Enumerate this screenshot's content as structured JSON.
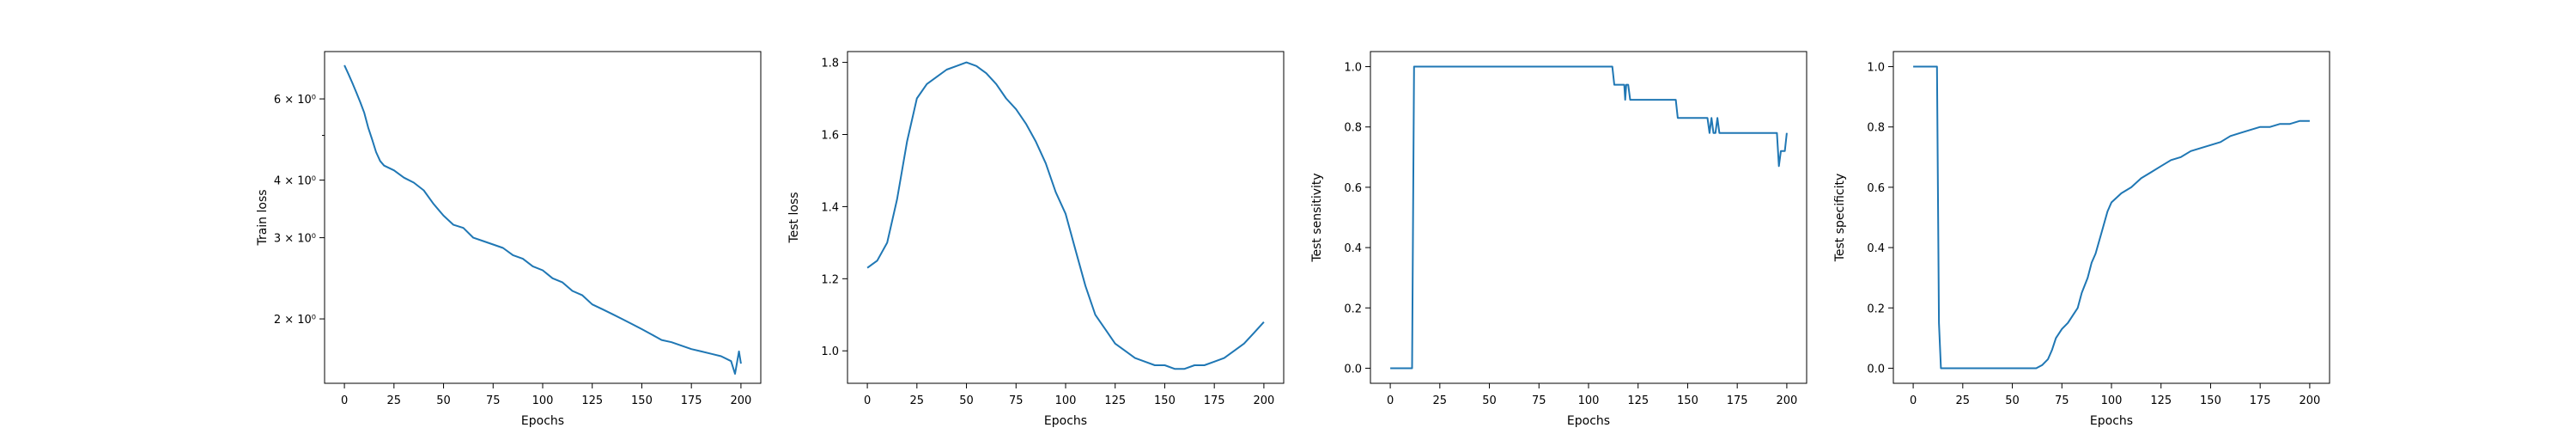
{
  "chart_data": [
    {
      "type": "line",
      "title": "",
      "xlabel": "Epochs",
      "ylabel": "Train loss",
      "yscale": "log",
      "xlim": [
        -10,
        210
      ],
      "ylim": [
        1.45,
        7.6
      ],
      "xticks": [
        0,
        25,
        50,
        75,
        100,
        125,
        150,
        175,
        200
      ],
      "yticks": [
        2,
        3,
        4,
        6
      ],
      "ytick_labels": [
        "2 × 10⁰",
        "3 × 10⁰",
        "4 × 10⁰",
        "6 × 10⁰"
      ],
      "grid": false,
      "series": [
        {
          "x": [
            0,
            2,
            4,
            6,
            8,
            10,
            12,
            14,
            16,
            18,
            20,
            25,
            30,
            35,
            40,
            45,
            50,
            55,
            60,
            65,
            70,
            75,
            80,
            85,
            90,
            95,
            100,
            105,
            110,
            115,
            120,
            125,
            130,
            135,
            140,
            145,
            150,
            155,
            160,
            165,
            170,
            175,
            180,
            185,
            190,
            195,
            197,
            199,
            200
          ],
          "y": [
            7.1,
            6.8,
            6.5,
            6.2,
            5.9,
            5.6,
            5.2,
            4.9,
            4.6,
            4.4,
            4.3,
            4.2,
            4.05,
            3.95,
            3.8,
            3.55,
            3.35,
            3.2,
            3.15,
            3.0,
            2.95,
            2.9,
            2.85,
            2.75,
            2.7,
            2.6,
            2.55,
            2.45,
            2.4,
            2.3,
            2.25,
            2.15,
            2.1,
            2.05,
            2.0,
            1.95,
            1.9,
            1.85,
            1.8,
            1.78,
            1.75,
            1.72,
            1.7,
            1.68,
            1.66,
            1.62,
            1.52,
            1.7,
            1.6
          ]
        }
      ]
    },
    {
      "type": "line",
      "title": "",
      "xlabel": "Epochs",
      "ylabel": "Test loss",
      "yscale": "linear",
      "xlim": [
        -10,
        210
      ],
      "ylim": [
        0.91,
        1.83
      ],
      "xticks": [
        0,
        25,
        50,
        75,
        100,
        125,
        150,
        175,
        200
      ],
      "yticks": [
        1.0,
        1.2,
        1.4,
        1.6,
        1.8
      ],
      "ytick_labels": [
        "1.0",
        "1.2",
        "1.4",
        "1.6",
        "1.8"
      ],
      "grid": false,
      "series": [
        {
          "x": [
            0,
            5,
            10,
            15,
            20,
            25,
            30,
            35,
            40,
            45,
            50,
            55,
            60,
            65,
            70,
            75,
            80,
            85,
            90,
            95,
            100,
            105,
            110,
            115,
            120,
            125,
            130,
            135,
            140,
            145,
            150,
            155,
            160,
            165,
            170,
            175,
            180,
            185,
            190,
            195,
            200
          ],
          "y": [
            1.23,
            1.25,
            1.3,
            1.42,
            1.58,
            1.7,
            1.74,
            1.76,
            1.78,
            1.79,
            1.8,
            1.79,
            1.77,
            1.74,
            1.7,
            1.67,
            1.63,
            1.58,
            1.52,
            1.44,
            1.38,
            1.28,
            1.18,
            1.1,
            1.06,
            1.02,
            1.0,
            0.98,
            0.97,
            0.96,
            0.96,
            0.95,
            0.95,
            0.96,
            0.96,
            0.97,
            0.98,
            1.0,
            1.02,
            1.05,
            1.08
          ]
        }
      ]
    },
    {
      "type": "line",
      "title": "",
      "xlabel": "Epochs",
      "ylabel": "Test sensitivity",
      "yscale": "linear",
      "xlim": [
        -10,
        210
      ],
      "ylim": [
        -0.05,
        1.05
      ],
      "xticks": [
        0,
        25,
        50,
        75,
        100,
        125,
        150,
        175,
        200
      ],
      "yticks": [
        0.0,
        0.2,
        0.4,
        0.6,
        0.8,
        1.0
      ],
      "ytick_labels": [
        "0.0",
        "0.2",
        "0.4",
        "0.6",
        "0.8",
        "1.0"
      ],
      "grid": false,
      "series": [
        {
          "x": [
            0,
            11,
            12,
            112,
            113,
            118,
            118.5,
            119,
            120,
            121,
            122,
            144,
            145,
            160,
            161,
            162,
            163,
            164,
            165,
            166,
            195,
            196,
            197,
            199,
            200
          ],
          "y": [
            0.0,
            0.0,
            1.0,
            1.0,
            0.94,
            0.94,
            0.89,
            0.94,
            0.94,
            0.89,
            0.89,
            0.89,
            0.83,
            0.83,
            0.78,
            0.83,
            0.78,
            0.78,
            0.83,
            0.78,
            0.78,
            0.67,
            0.72,
            0.72,
            0.78
          ]
        }
      ]
    },
    {
      "type": "line",
      "title": "",
      "xlabel": "Epochs",
      "ylabel": "Test specificity",
      "yscale": "linear",
      "xlim": [
        -10,
        210
      ],
      "ylim": [
        -0.05,
        1.05
      ],
      "xticks": [
        0,
        25,
        50,
        75,
        100,
        125,
        150,
        175,
        200
      ],
      "yticks": [
        0.0,
        0.2,
        0.4,
        0.6,
        0.8,
        1.0
      ],
      "ytick_labels": [
        "0.0",
        "0.2",
        "0.4",
        "0.6",
        "0.8",
        "1.0"
      ],
      "grid": false,
      "series": [
        {
          "x": [
            0,
            12,
            13,
            14,
            20,
            40,
            60,
            62,
            65,
            68,
            70,
            72,
            75,
            78,
            80,
            83,
            85,
            88,
            90,
            92,
            95,
            98,
            100,
            105,
            110,
            115,
            120,
            125,
            130,
            135,
            140,
            145,
            150,
            155,
            160,
            165,
            170,
            175,
            180,
            185,
            190,
            195,
            198,
            200
          ],
          "y": [
            1.0,
            1.0,
            0.15,
            0.0,
            0.0,
            0.0,
            0.0,
            0.0,
            0.01,
            0.03,
            0.06,
            0.1,
            0.13,
            0.15,
            0.17,
            0.2,
            0.25,
            0.3,
            0.35,
            0.38,
            0.45,
            0.52,
            0.55,
            0.58,
            0.6,
            0.63,
            0.65,
            0.67,
            0.69,
            0.7,
            0.72,
            0.73,
            0.74,
            0.75,
            0.77,
            0.78,
            0.79,
            0.8,
            0.8,
            0.81,
            0.81,
            0.82,
            0.82,
            0.82
          ]
        }
      ]
    }
  ]
}
